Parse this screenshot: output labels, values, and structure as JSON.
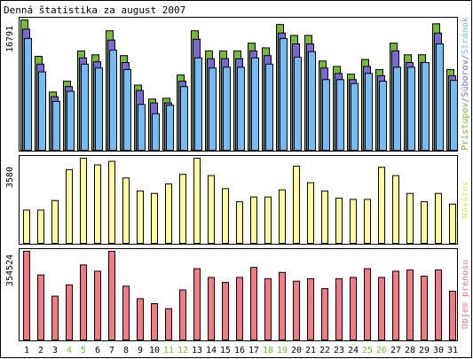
{
  "title": "Denná štatistika za august 2007",
  "colors": {
    "frame": "#000000",
    "pristupov": "#77b83a",
    "suborov": "#7a68d8",
    "stranok": "#74bdf2",
    "navstev": "#ffff99",
    "objem": "#f47b86",
    "weekend_label": "#77b83a",
    "weekday_label": "#000000",
    "legend_stranok": "#74bdf2",
    "legend_suborov": "#7a68d8",
    "legend_pristupov": "#77b83a",
    "legend_navstev": "#dddd66",
    "legend_objem": "#f47b86"
  },
  "chart_data": [
    {
      "type": "bar",
      "title": "Denná štatistika za august 2007",
      "categories": [
        "1",
        "2",
        "3",
        "4",
        "5",
        "6",
        "7",
        "8",
        "9",
        "10",
        "11",
        "12",
        "13",
        "14",
        "15",
        "16",
        "17",
        "18",
        "19",
        "20",
        "21",
        "22",
        "23",
        "24",
        "25",
        "26",
        "27",
        "28",
        "29",
        "30",
        "31"
      ],
      "weekend": [
        false,
        false,
        false,
        true,
        true,
        false,
        false,
        false,
        false,
        false,
        true,
        true,
        false,
        false,
        false,
        false,
        false,
        true,
        true,
        false,
        false,
        false,
        false,
        false,
        true,
        true,
        false,
        false,
        false,
        false,
        false
      ],
      "ymax_label": "16791",
      "ylim": [
        0,
        16791
      ],
      "legend": "Prístupov/Súborov/Stránok",
      "legend_parts": [
        "Prístupov",
        "/Súborov/",
        "Stránok"
      ],
      "series": [
        {
          "name": "Prístupov",
          "values": [
            16791,
            12100,
            7500,
            8900,
            12800,
            12300,
            15400,
            12200,
            8400,
            6600,
            6700,
            9700,
            15400,
            12800,
            12800,
            12800,
            13800,
            13200,
            16200,
            14800,
            14800,
            11500,
            10800,
            9800,
            11700,
            10400,
            13800,
            12300,
            12300,
            16300,
            10400
          ]
        },
        {
          "name": "Súborov",
          "values": [
            15600,
            11100,
            6900,
            8200,
            11900,
            11400,
            14200,
            11300,
            7700,
            6100,
            6100,
            8900,
            14300,
            11800,
            11800,
            11800,
            12800,
            12200,
            15100,
            13700,
            13700,
            10600,
            9900,
            9100,
            10800,
            9600,
            12800,
            11300,
            11300,
            15100,
            9600
          ]
        },
        {
          "name": "Stránok",
          "values": [
            14400,
            10100,
            6300,
            7600,
            11100,
            10600,
            12900,
            10400,
            5900,
            4700,
            5800,
            8200,
            11900,
            10600,
            10700,
            10700,
            11900,
            11100,
            14400,
            12000,
            12700,
            9100,
            9100,
            8600,
            9900,
            8900,
            10700,
            10700,
            11300,
            13700,
            9000
          ]
        }
      ]
    },
    {
      "type": "bar",
      "categories": [
        "1",
        "2",
        "3",
        "4",
        "5",
        "6",
        "7",
        "8",
        "9",
        "10",
        "11",
        "12",
        "13",
        "14",
        "15",
        "16",
        "17",
        "18",
        "19",
        "20",
        "21",
        "22",
        "23",
        "24",
        "25",
        "26",
        "27",
        "28",
        "29",
        "30",
        "31"
      ],
      "ymax_label": "3580",
      "ylim": [
        0,
        3580
      ],
      "legend": "Návštev",
      "series": [
        {
          "name": "Návštev",
          "values": [
            1400,
            1400,
            1800,
            3100,
            3580,
            3300,
            3450,
            2750,
            2200,
            2100,
            2500,
            2900,
            3580,
            2850,
            2300,
            1750,
            1950,
            1950,
            2250,
            3250,
            2550,
            2200,
            1900,
            1850,
            1850,
            3200,
            2850,
            2100,
            1750,
            2100,
            1650
          ]
        }
      ]
    },
    {
      "type": "bar",
      "categories": [
        "1",
        "2",
        "3",
        "4",
        "5",
        "6",
        "7",
        "8",
        "9",
        "10",
        "11",
        "12",
        "13",
        "14",
        "15",
        "16",
        "17",
        "18",
        "19",
        "20",
        "21",
        "22",
        "23",
        "24",
        "25",
        "26",
        "27",
        "28",
        "29",
        "30",
        "31"
      ],
      "ymax_label": "354524",
      "ylim": [
        0,
        354524
      ],
      "legend": "Objem prenosu",
      "series": [
        {
          "name": "Objem prenosu",
          "values": [
            354524,
            260000,
            175000,
            220000,
            300000,
            275000,
            354524,
            215000,
            165000,
            145000,
            125000,
            200000,
            285000,
            250000,
            230000,
            250000,
            290000,
            245000,
            270000,
            235000,
            245000,
            205000,
            245000,
            250000,
            285000,
            250000,
            275000,
            280000,
            255000,
            280000,
            195000
          ]
        }
      ]
    }
  ]
}
